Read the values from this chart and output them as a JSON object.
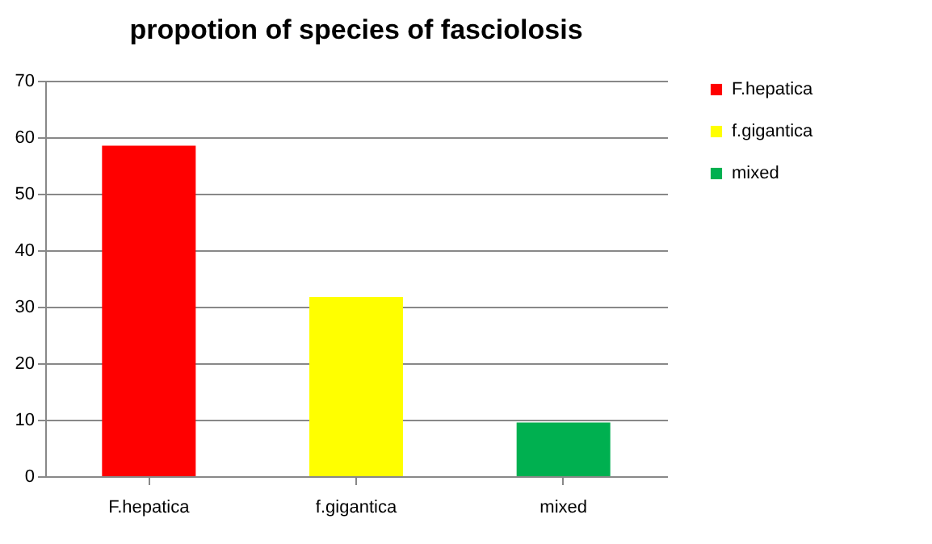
{
  "chart_data": {
    "type": "bar",
    "title": "propotion of species of fasciolosis",
    "categories": [
      "F.hepatica",
      "f.gigantica",
      "mixed"
    ],
    "stacked": true,
    "series": [
      {
        "name": "F.hepatica",
        "color": "#ff0000",
        "values": [
          58.5,
          null,
          null
        ]
      },
      {
        "name": "f.gigantica",
        "color": "#ffff00",
        "values": [
          null,
          31.7,
          null
        ]
      },
      {
        "name": "mixed",
        "color": "#00b050",
        "values": [
          null,
          null,
          9.5
        ]
      }
    ],
    "ylim": [
      0,
      70
    ],
    "yticks": [
      0,
      10,
      20,
      30,
      40,
      50,
      60,
      70
    ],
    "grid": "y",
    "legend": "right"
  }
}
